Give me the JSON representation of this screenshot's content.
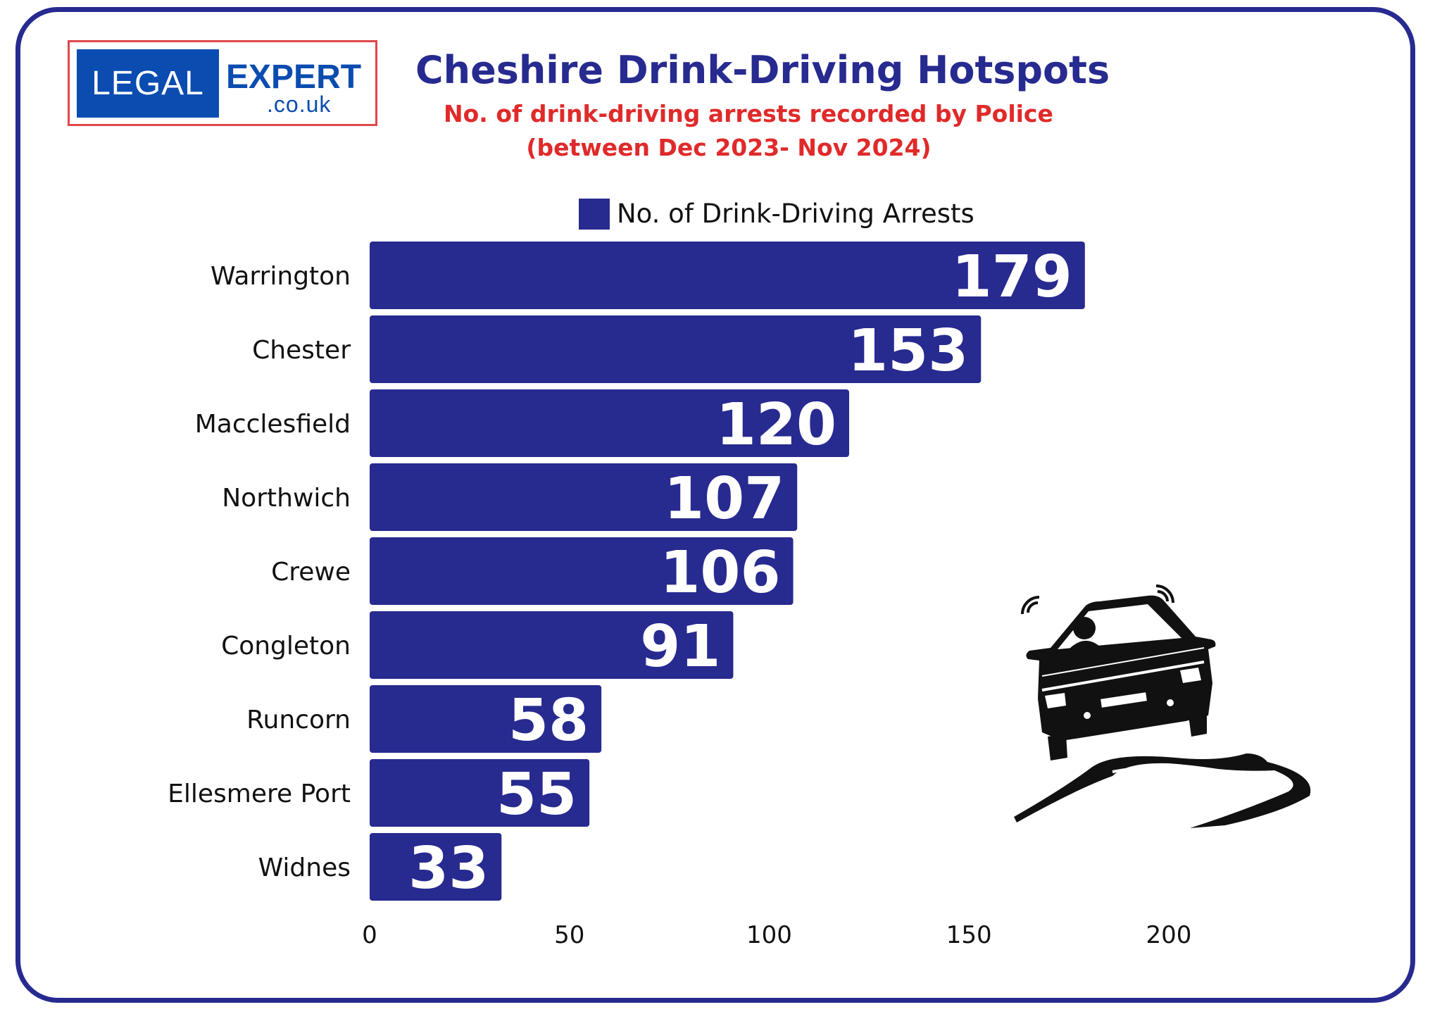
{
  "logo": {
    "left_text": "LEGAL",
    "right_text": "EXPERT",
    "domain": ".co.uk"
  },
  "title": "Cheshire Drink-Driving Hotspots",
  "subtitle_line1": "No. of drink-driving arrests recorded by Police",
  "subtitle_line2": "(between Dec 2023- Nov 2024)",
  "colors": {
    "bar": "#272a8f",
    "frame": "#272a8f",
    "subtitle": "#e02a2a",
    "logo_blue": "#0b4cb0",
    "logo_border": "#e0474c"
  },
  "chart_data": {
    "type": "bar",
    "orientation": "horizontal",
    "categories": [
      "Warrington",
      "Chester",
      "Macclesfield",
      "Northwich",
      "Crewe",
      "Congleton",
      "Runcorn",
      "Ellesmere Port",
      "Widnes"
    ],
    "series": [
      {
        "name": "No. of Drink-Driving Arrests",
        "values": [
          179,
          153,
          120,
          107,
          106,
          91,
          58,
          55,
          33
        ]
      }
    ],
    "xlim": [
      0,
      200
    ],
    "xticks": [
      "0",
      "50",
      "100",
      "150",
      "200"
    ],
    "grid": false,
    "legend_position": "top",
    "data_labels": true
  },
  "decoration": {
    "icon": "swerving-car-icon"
  }
}
